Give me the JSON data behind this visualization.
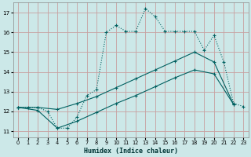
{
  "xlabel": "Humidex (Indice chaleur)",
  "background_color": "#cce8e8",
  "grid_color": "#c8a0a0",
  "line_color": "#006060",
  "xlim": [
    -0.5,
    23.5
  ],
  "ylim": [
    10.7,
    17.5
  ],
  "yticks": [
    11,
    12,
    13,
    14,
    15,
    16,
    17
  ],
  "xtick_labels": [
    "0",
    "1",
    "2",
    "3",
    "4",
    "5",
    "6",
    "7",
    "8",
    "9",
    "10",
    "11",
    "12",
    "13",
    "14",
    "15",
    "16",
    "17",
    "18",
    "19",
    "20",
    "21",
    "22",
    "23"
  ],
  "xticks": [
    0,
    1,
    2,
    3,
    4,
    5,
    6,
    7,
    8,
    9,
    10,
    11,
    12,
    13,
    14,
    15,
    16,
    17,
    18,
    19,
    20,
    21,
    22,
    23
  ],
  "curve1_x": [
    0,
    1,
    2,
    3,
    4,
    5,
    6,
    7,
    8,
    9,
    10,
    11,
    12,
    13,
    14,
    15,
    16,
    17,
    18,
    19,
    20,
    21,
    22,
    23
  ],
  "curve1_y": [
    12.2,
    12.2,
    12.2,
    12.0,
    11.15,
    11.15,
    11.7,
    12.8,
    13.1,
    16.0,
    16.35,
    16.05,
    16.05,
    17.2,
    16.8,
    16.05,
    16.05,
    16.05,
    16.05,
    15.1,
    15.85,
    14.5,
    12.4,
    12.25
  ],
  "curve2_x": [
    0,
    2,
    4,
    6,
    8,
    10,
    12,
    14,
    16,
    18,
    20,
    22
  ],
  "curve2_y": [
    12.2,
    12.2,
    12.1,
    12.4,
    12.75,
    13.2,
    13.65,
    14.1,
    14.55,
    15.0,
    14.5,
    12.35
  ],
  "curve3_x": [
    0,
    2,
    4,
    6,
    8,
    10,
    12,
    14,
    16,
    18,
    20,
    22
  ],
  "curve3_y": [
    12.2,
    12.05,
    11.15,
    11.5,
    11.95,
    12.4,
    12.8,
    13.25,
    13.7,
    14.1,
    13.9,
    12.35
  ]
}
